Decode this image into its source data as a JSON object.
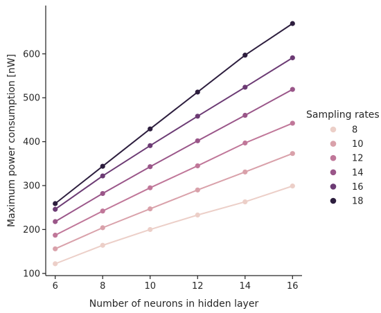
{
  "chart_data": {
    "type": "line",
    "xlabel": "Number of neurons in hidden layer",
    "ylabel": "Maximum power consumption [nW]",
    "x": [
      6,
      8,
      10,
      12,
      14,
      16
    ],
    "xticks": [
      "6",
      "8",
      "10",
      "12",
      "14",
      "16"
    ],
    "yticks": [
      "100",
      "200",
      "300",
      "400",
      "500",
      "600"
    ],
    "xlim": [
      5.6,
      16.4
    ],
    "ylim": [
      95,
      710
    ],
    "grid": false,
    "legend": {
      "title": "Sampling rates",
      "placement": "right"
    },
    "series": [
      {
        "name": "8",
        "color": "#eccfc8",
        "values": [
          122,
          164,
          200,
          233,
          263,
          299
        ]
      },
      {
        "name": "10",
        "color": "#d9a1aa",
        "values": [
          156,
          204,
          247,
          290,
          331,
          373
        ]
      },
      {
        "name": "12",
        "color": "#c07799",
        "values": [
          187,
          242,
          295,
          345,
          397,
          442
        ]
      },
      {
        "name": "14",
        "color": "#9a5689",
        "values": [
          218,
          282,
          343,
          402,
          460,
          519
        ]
      },
      {
        "name": "16",
        "color": "#6c3b74",
        "values": [
          246,
          322,
          391,
          458,
          524,
          591
        ]
      },
      {
        "name": "18",
        "color": "#2d1e3e",
        "values": [
          259,
          344,
          429,
          513,
          597,
          669
        ]
      }
    ]
  }
}
